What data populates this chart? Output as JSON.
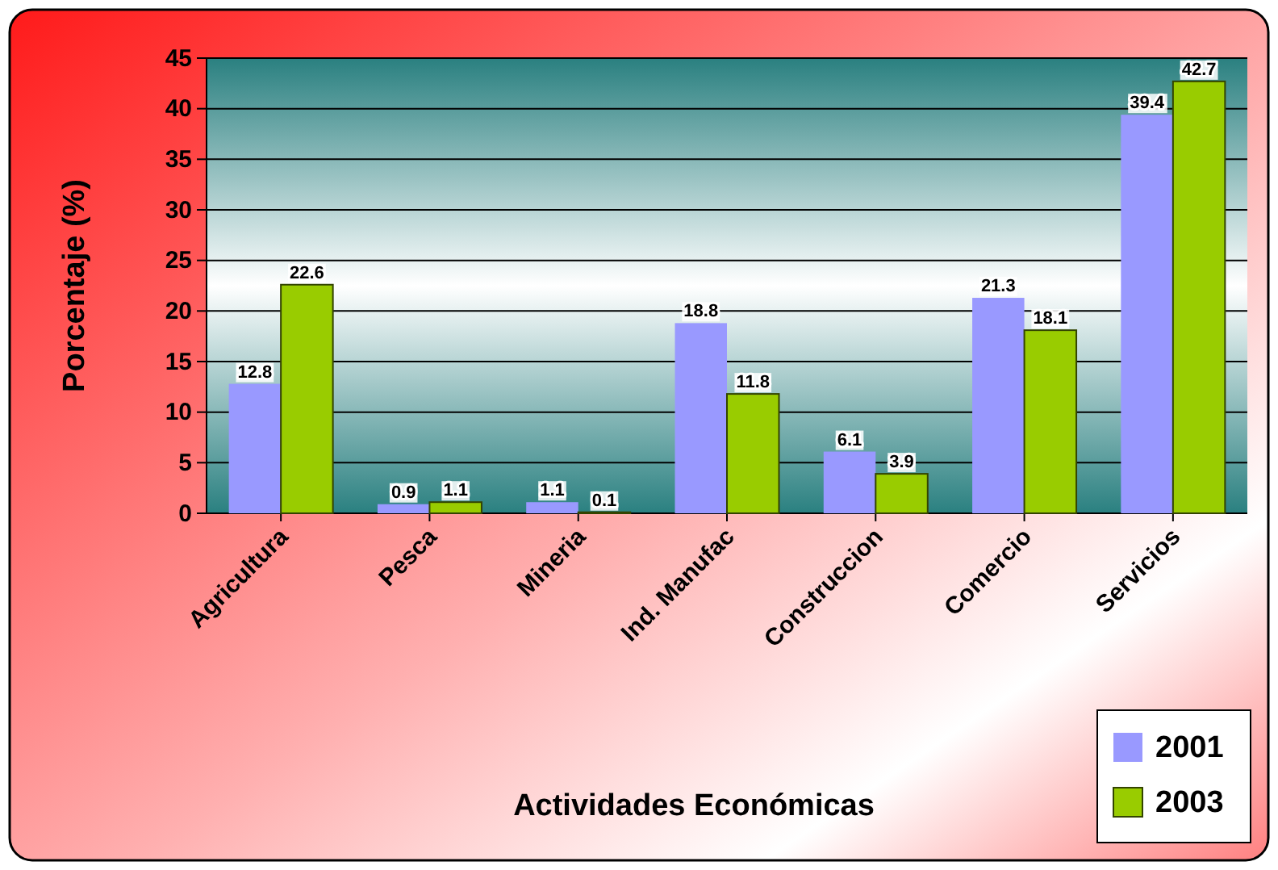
{
  "chart_data": {
    "type": "bar",
    "xlabel": "Actividades Económicas",
    "ylabel": "Porcentaje (%)",
    "categories": [
      "Agricultura",
      "Pesca",
      "Mineria",
      "Ind. Manufac",
      "Construccion",
      "Comercio",
      "Servicios"
    ],
    "series": [
      {
        "name": "2001",
        "color": "#9999ff",
        "values": [
          12.8,
          0.9,
          1.1,
          18.8,
          6.1,
          21.3,
          39.4
        ]
      },
      {
        "name": "2003",
        "color": "#99cc00",
        "values": [
          22.6,
          1.1,
          0.1,
          11.8,
          3.9,
          18.1,
          42.7
        ]
      }
    ],
    "ylim": [
      0,
      45
    ],
    "yticks": [
      0,
      5,
      10,
      15,
      20,
      25,
      30,
      35,
      40,
      45
    ],
    "grid": "y",
    "legend": "bottom right",
    "data_labels": true
  }
}
